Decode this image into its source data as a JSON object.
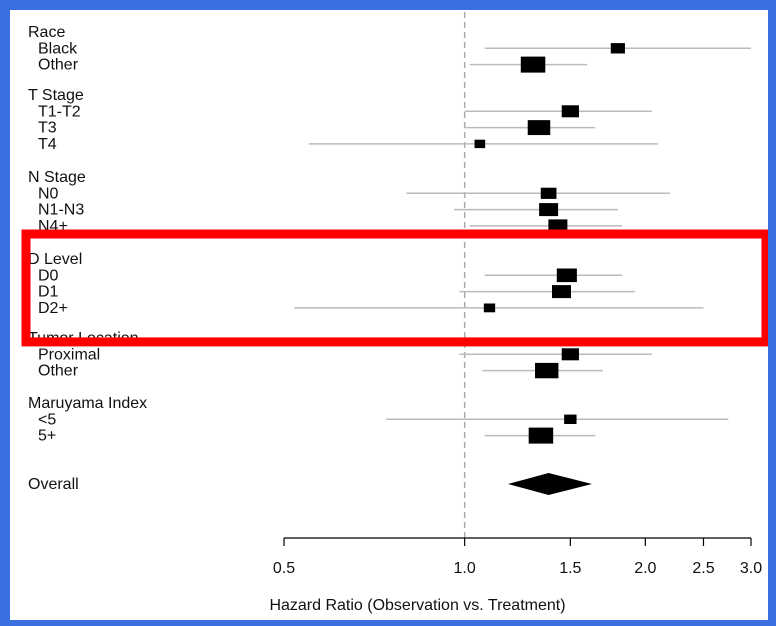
{
  "colors": {
    "border": "#3a6fe0",
    "highlight": "#ff0000",
    "ci_line": "#bbbbbb",
    "ref_line": "#aaaaaa",
    "marker": "#000000"
  },
  "chart_data": {
    "type": "forest",
    "xlabel": "Hazard Ratio (Observation vs. Treatment)",
    "xscale": "log",
    "xlim": [
      0.5,
      3.0
    ],
    "xticks": [
      0.5,
      1.0,
      1.5,
      2.0,
      2.5,
      3.0
    ],
    "xtick_labels": [
      "0.5",
      "1.0",
      "1.5",
      "2.0",
      "2.5",
      "3.0"
    ],
    "reference_line": 1.0,
    "highlight_group": "D Level",
    "groups": [
      {
        "label": "Race",
        "rows": [
          {
            "label": "Black",
            "hr": 1.8,
            "lo": 1.08,
            "hi": 3.0,
            "weight": 0.28
          },
          {
            "label": "Other",
            "hr": 1.3,
            "lo": 1.02,
            "hi": 1.6,
            "weight": 0.75
          }
        ]
      },
      {
        "label": "T Stage",
        "rows": [
          {
            "label": "T1-T2",
            "hr": 1.5,
            "lo": 1.0,
            "hi": 2.05,
            "weight": 0.42
          },
          {
            "label": "T3",
            "hr": 1.33,
            "lo": 1.0,
            "hi": 1.65,
            "weight": 0.66
          },
          {
            "label": "T4",
            "hr": 1.06,
            "lo": 0.55,
            "hi": 2.1,
            "weight": 0.12
          }
        ]
      },
      {
        "label": "N Stage",
        "rows": [
          {
            "label": "N0",
            "hr": 1.38,
            "lo": 0.8,
            "hi": 2.2,
            "weight": 0.35
          },
          {
            "label": "N1-N3",
            "hr": 1.38,
            "lo": 0.96,
            "hi": 1.8,
            "weight": 0.5
          },
          {
            "label": "N4+",
            "hr": 1.43,
            "lo": 1.02,
            "hi": 1.83,
            "weight": 0.5
          }
        ]
      },
      {
        "label": "D Level",
        "rows": [
          {
            "label": "D0",
            "hr": 1.48,
            "lo": 1.08,
            "hi": 1.83,
            "weight": 0.55
          },
          {
            "label": "D1",
            "hr": 1.45,
            "lo": 0.98,
            "hi": 1.92,
            "weight": 0.5
          },
          {
            "label": "D2+",
            "hr": 1.1,
            "lo": 0.52,
            "hi": 2.5,
            "weight": 0.15
          }
        ]
      },
      {
        "label": "Tumor Location",
        "rows": [
          {
            "label": "Proximal",
            "hr": 1.5,
            "lo": 0.98,
            "hi": 2.05,
            "weight": 0.42
          },
          {
            "label": "Other",
            "hr": 1.37,
            "lo": 1.07,
            "hi": 1.7,
            "weight": 0.7
          }
        ]
      },
      {
        "label": "Maruyama Index",
        "rows": [
          {
            "label": "<5",
            "hr": 1.5,
            "lo": 0.74,
            "hi": 2.75,
            "weight": 0.2
          },
          {
            "label": "5+",
            "hr": 1.34,
            "lo": 1.08,
            "hi": 1.65,
            "weight": 0.75
          }
        ]
      }
    ],
    "overall": {
      "label": "Overall",
      "hr": 1.38,
      "lo": 1.18,
      "hi": 1.63
    }
  }
}
